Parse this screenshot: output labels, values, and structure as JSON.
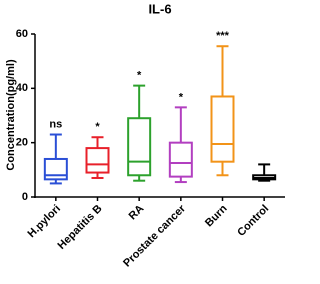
{
  "chart_data": {
    "type": "box",
    "title": "IL-6",
    "y_label": "Concentration(pg/ml)",
    "categories": [
      "H.pylori",
      "Hepatitis B",
      "RA",
      "Prostate cancer",
      "Burn",
      "Control"
    ],
    "colors": [
      "#2a4fd6",
      "#e8202a",
      "#2ca12c",
      "#b23fc0",
      "#f29318",
      "#000000"
    ],
    "min": [
      5,
      7,
      6,
      5.5,
      8,
      6
    ],
    "q1": [
      6.5,
      9,
      8,
      7.5,
      13,
      6.5
    ],
    "median": [
      8,
      12,
      13,
      12.5,
      19.5,
      7
    ],
    "q3": [
      14,
      18,
      29,
      20,
      37,
      8
    ],
    "max": [
      23,
      22,
      41,
      33,
      55.5,
      12
    ],
    "annotations": [
      "ns",
      "*",
      "*",
      "*",
      "***",
      null
    ],
    "ylim": [
      0,
      60
    ],
    "yticks": [
      0,
      20,
      40,
      60
    ]
  }
}
